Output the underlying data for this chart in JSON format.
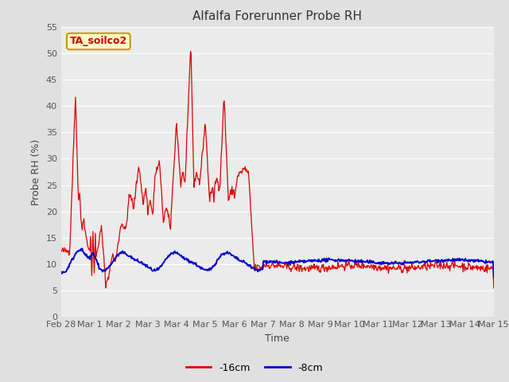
{
  "title": "Alfalfa Forerunner Probe RH",
  "ylabel": "Probe RH (%)",
  "xlabel": "Time",
  "ylim": [
    0,
    55
  ],
  "yticks": [
    0,
    5,
    10,
    15,
    20,
    25,
    30,
    35,
    40,
    45,
    50,
    55
  ],
  "fig_bg_color": "#e0e0e0",
  "plot_bg_color": "#ebebeb",
  "grid_color": "#ffffff",
  "annotation_text": "TA_soilco2",
  "annotation_bg": "#ffffcc",
  "annotation_border": "#cc9900",
  "annotation_text_color": "#cc0000",
  "line1_color": "#dd0000",
  "line2_color": "#0000cc",
  "line1_label": "-16cm",
  "line2_label": "-8cm",
  "x_tick_labels": [
    "Feb 28",
    "Mar 1",
    "Mar 2",
    "Mar 3",
    "Mar 4",
    "Mar 5",
    "Mar 6",
    "Mar 7",
    "Mar 8",
    "Mar 9",
    "Mar 10",
    "Mar 11",
    "Mar 12",
    "Mar 13",
    "Mar 14",
    "Mar 15"
  ],
  "title_fontsize": 11,
  "label_fontsize": 9,
  "tick_fontsize": 8
}
